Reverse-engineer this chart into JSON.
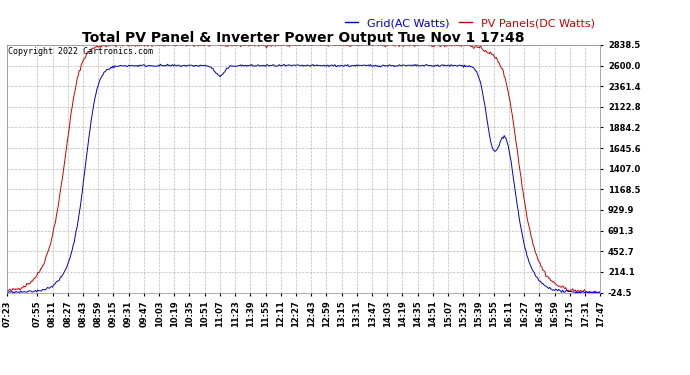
{
  "title": "Total PV Panel & Inverter Power Output Tue Nov 1 17:48",
  "copyright": "Copyright 2022 Cartronics.com",
  "legend_blue": "Grid(AC Watts)",
  "legend_red": "PV Panels(DC Watts)",
  "yticks": [
    2838.5,
    2600.0,
    2361.4,
    2122.8,
    1884.2,
    1645.6,
    1407.0,
    1168.5,
    929.9,
    691.3,
    452.7,
    214.1,
    -24.5
  ],
  "ylim": [
    -24.5,
    2838.5
  ],
  "xtick_labels": [
    "07:23",
    "07:55",
    "08:11",
    "08:27",
    "08:43",
    "08:59",
    "09:15",
    "09:31",
    "09:47",
    "10:03",
    "10:19",
    "10:35",
    "10:51",
    "11:07",
    "11:23",
    "11:39",
    "11:55",
    "12:11",
    "12:27",
    "12:43",
    "12:59",
    "13:15",
    "13:31",
    "13:47",
    "14:03",
    "14:19",
    "14:35",
    "14:51",
    "15:07",
    "15:23",
    "15:39",
    "15:55",
    "16:11",
    "16:27",
    "16:43",
    "16:59",
    "17:15",
    "17:31",
    "17:47"
  ],
  "bg_color": "#ffffff",
  "grid_color": "#aaaaaa",
  "blue_color": "#0000cc",
  "red_color": "#cc0000",
  "title_fontsize": 10,
  "copyright_fontsize": 6,
  "legend_fontsize": 8,
  "tick_fontsize": 6
}
